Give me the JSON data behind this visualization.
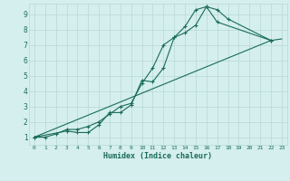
{
  "xlabel": "Humidex (Indice chaleur)",
  "bg_color": "#d4efee",
  "grid_color": "#b8d8d6",
  "line_color": "#1a6b5a",
  "xlim": [
    -0.5,
    23.5
  ],
  "ylim": [
    0.5,
    9.7
  ],
  "xticks": [
    0,
    1,
    2,
    3,
    4,
    5,
    6,
    7,
    8,
    9,
    10,
    11,
    12,
    13,
    14,
    15,
    16,
    17,
    18,
    19,
    20,
    21,
    22,
    23
  ],
  "yticks": [
    1,
    2,
    3,
    4,
    5,
    6,
    7,
    8,
    9
  ],
  "line1_x": [
    0,
    1,
    2,
    3,
    4,
    5,
    6,
    7,
    8,
    9,
    10,
    11,
    12,
    13,
    14,
    15,
    16,
    17,
    18,
    22
  ],
  "line1_y": [
    1,
    1,
    1.2,
    1.5,
    1.5,
    1.7,
    2.0,
    2.5,
    3.0,
    3.2,
    4.5,
    5.5,
    7.0,
    7.5,
    8.2,
    9.3,
    9.5,
    9.3,
    8.7,
    7.3
  ],
  "line2_x": [
    0,
    3,
    4,
    5,
    6,
    7,
    8,
    9,
    10,
    11,
    12,
    13,
    14,
    15,
    16,
    17,
    22
  ],
  "line2_y": [
    1,
    1.4,
    1.3,
    1.3,
    1.8,
    2.6,
    2.6,
    3.1,
    4.7,
    4.6,
    5.5,
    7.5,
    7.8,
    8.3,
    9.5,
    8.5,
    7.3
  ],
  "line3_x": [
    0,
    22,
    23
  ],
  "line3_y": [
    1,
    7.3,
    7.4
  ]
}
